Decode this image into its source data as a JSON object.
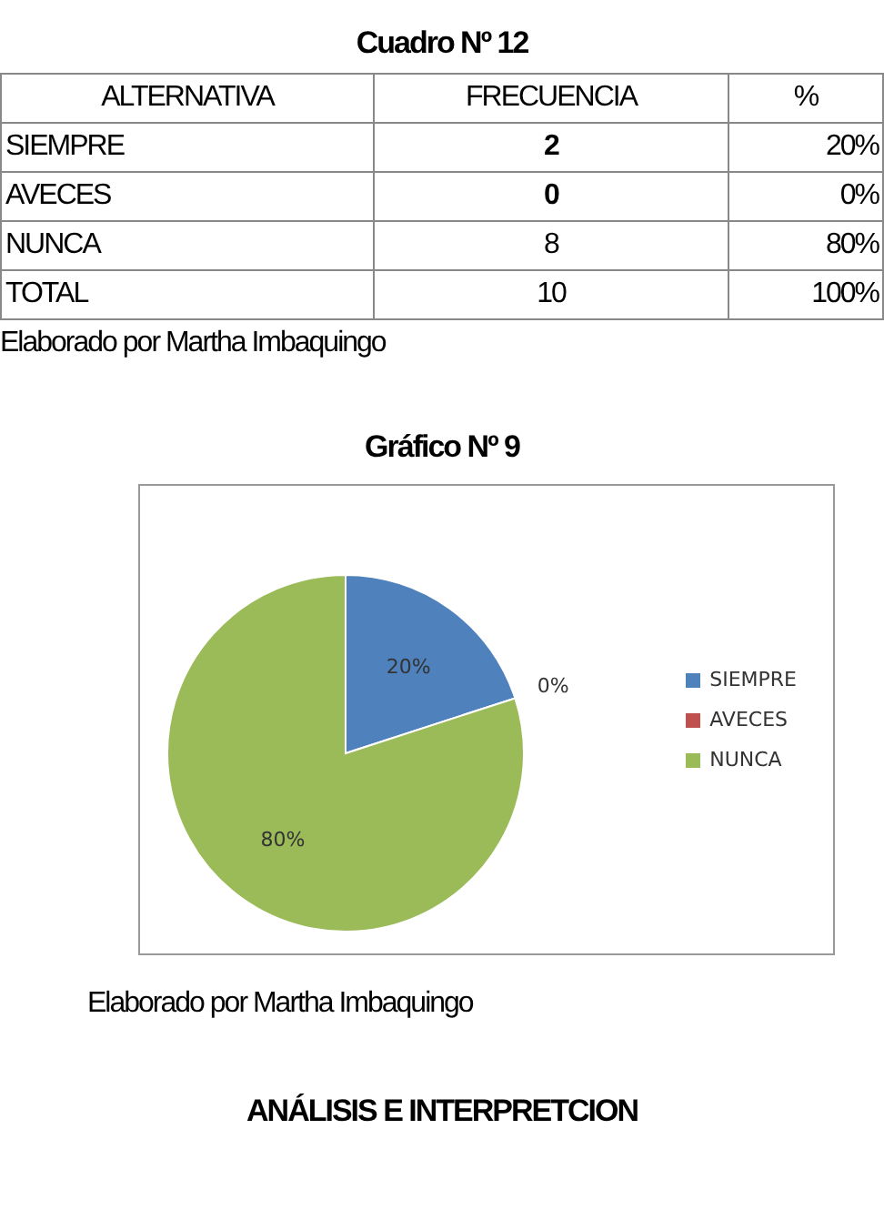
{
  "chart_data": {
    "type": "pie",
    "title": "Gráfico Nº 9",
    "categories": [
      "SIEMPRE",
      "AVECES",
      "NUNCA"
    ],
    "values": [
      20,
      0,
      80
    ],
    "colors": [
      "#4f81bd",
      "#c0504d",
      "#9bbb59"
    ],
    "value_labels": [
      "20%",
      "0%",
      "80%"
    ],
    "legend": "right",
    "annotations": [
      "Cuadro Nº 12",
      "ALTERNATIVA",
      "FRECUENCIA",
      "%",
      "2",
      "0",
      "8",
      "TOTAL",
      "10",
      "100%",
      "Elaborado por Martha Imbaquingo",
      "Elaborado por Martha Imbaquingo",
      "ANÁLISIS E  INTERPRETCION"
    ]
  }
}
